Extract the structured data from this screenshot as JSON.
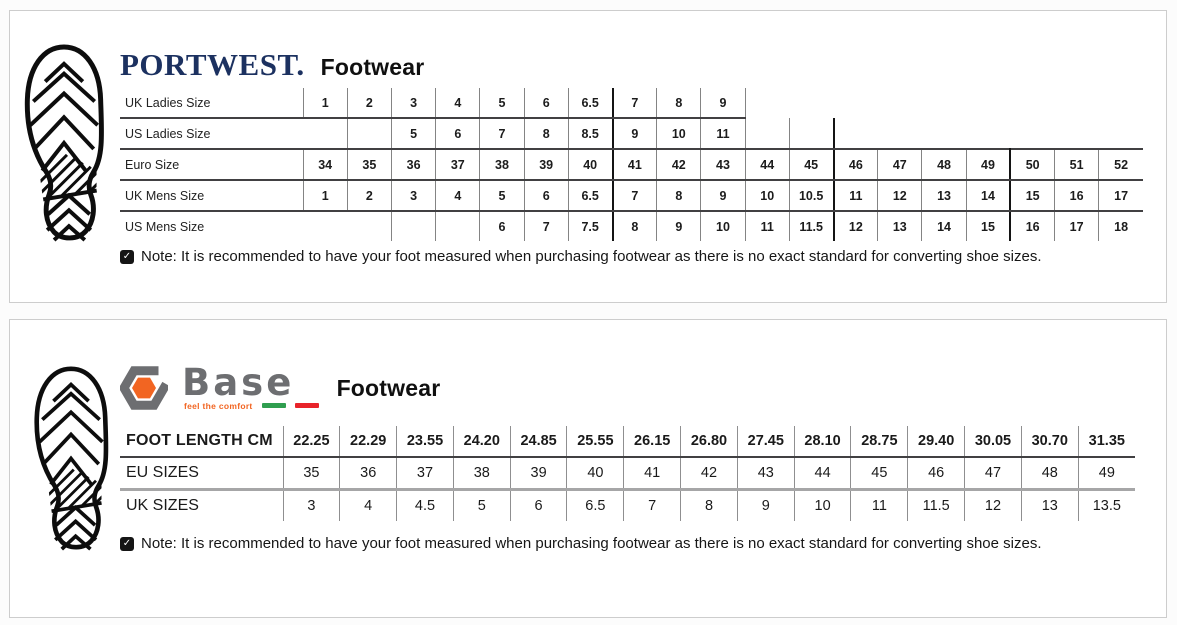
{
  "portwest": {
    "brand": "PORTWEST.",
    "product_line": "Footwear",
    "brand_color": "#1c3160",
    "note": "Note: It is recommended to have your foot measured when purchasing footwear as there is no exact standard for converting shoe sizes.",
    "table": {
      "rows": [
        {
          "label": "UK Ladies Size",
          "cells": [
            "1",
            "2",
            "3",
            "4",
            "5",
            "6",
            "6.5",
            "7",
            "8",
            "9",
            null,
            null,
            null,
            null,
            null,
            null,
            null,
            null,
            null
          ]
        },
        {
          "label": "US Ladies Size",
          "cells": [
            "",
            "",
            "5",
            "6",
            "7",
            "8",
            "8.5",
            "9",
            "10",
            "11",
            "",
            "",
            null,
            null,
            null,
            null,
            null,
            null,
            null
          ]
        },
        {
          "label": "Euro Size",
          "cells": [
            "34",
            "35",
            "36",
            "37",
            "38",
            "39",
            "40",
            "41",
            "42",
            "43",
            "44",
            "45",
            "46",
            "47",
            "48",
            "49",
            "50",
            "51",
            "52"
          ]
        },
        {
          "label": "UK Mens Size",
          "cells": [
            "1",
            "2",
            "3",
            "4",
            "5",
            "6",
            "6.5",
            "7",
            "8",
            "9",
            "10",
            "10.5",
            "11",
            "12",
            "13",
            "14",
            "15",
            "16",
            "17"
          ]
        },
        {
          "label": "US Mens Size",
          "cells": [
            null,
            null,
            "",
            "",
            "6",
            "7",
            "7.5",
            "8",
            "9",
            "10",
            "11",
            "11.5",
            "12",
            "13",
            "14",
            "15",
            "16",
            "17",
            "18"
          ]
        }
      ]
    }
  },
  "base": {
    "brand": "Base",
    "tagline": "feel the comfort",
    "product_line": "Footwear",
    "brand_gray": "#6d6e71",
    "accent_orange": "#f26522",
    "flag_green": "#2f9e4f",
    "flag_red": "#e8232a",
    "note": "Note: It is recommended to have your foot measured when purchasing footwear as there is no exact standard for converting shoe sizes.",
    "table": {
      "rows": [
        {
          "label": "FOOT LENGTH CM",
          "cells": [
            "22.25",
            "22.29",
            "23.55",
            "24.20",
            "24.85",
            "25.55",
            "26.15",
            "26.80",
            "27.45",
            "28.10",
            "28.75",
            "29.40",
            "30.05",
            "30.70",
            "31.35"
          ]
        },
        {
          "label": "EU SIZES",
          "cells": [
            "35",
            "36",
            "37",
            "38",
            "39",
            "40",
            "41",
            "42",
            "43",
            "44",
            "45",
            "46",
            "47",
            "48",
            "49"
          ]
        },
        {
          "label": "UK SIZES",
          "cells": [
            "3",
            "4",
            "4.5",
            "5",
            "6",
            "6.5",
            "7",
            "8",
            "9",
            "10",
            "11",
            "11.5",
            "12",
            "13",
            "13.5"
          ]
        }
      ]
    }
  }
}
